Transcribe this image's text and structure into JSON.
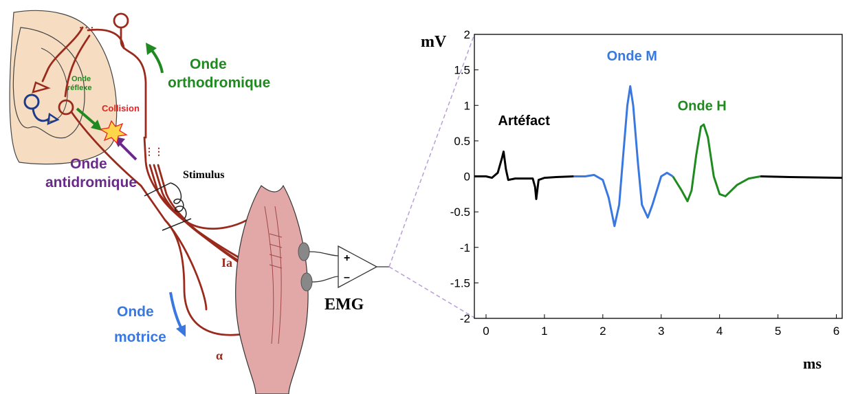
{
  "colors": {
    "nerve": "#9a2a1c",
    "spinal_fill": "#f6dcc0",
    "orthodromic": "#1f8a1f",
    "antidromic": "#6a2a8a",
    "motor": "#3a78e0",
    "collision": "#e8201e",
    "muscle": "#e2a7a7",
    "black": "#000000"
  },
  "diagram": {
    "labels": {
      "onde_reflexe_1": "Onde",
      "onde_reflexe_2": "réflexe",
      "collision": "Collision",
      "ortho_1": "Onde",
      "ortho_2": "orthodromique",
      "anti_1": "Onde",
      "anti_2": "antidromique",
      "stimulus": "Stimulus",
      "ia": "Ia",
      "motrice_1": "Onde",
      "motrice_2": "motrice",
      "alpha": "α",
      "emg": "EMG",
      "plus": "+",
      "minus": "–"
    }
  },
  "chart_data": {
    "type": "line",
    "ylabel": "mV",
    "xlabel": "ms",
    "xlim": [
      -0.2,
      6.1
    ],
    "ylim": [
      -2,
      2
    ],
    "xticks": [
      0,
      1,
      2,
      3,
      4,
      5,
      6
    ],
    "yticks": [
      2,
      1.5,
      1,
      0.5,
      0,
      -0.5,
      -1,
      -1.5,
      -2
    ],
    "grid": false,
    "series": [
      {
        "name": "Artéfact",
        "color": "#000000",
        "points": [
          [
            -0.2,
            0.0
          ],
          [
            0.0,
            0.0
          ],
          [
            0.1,
            -0.02
          ],
          [
            0.2,
            0.05
          ],
          [
            0.27,
            0.25
          ],
          [
            0.3,
            0.35
          ],
          [
            0.34,
            0.1
          ],
          [
            0.38,
            -0.05
          ],
          [
            0.5,
            -0.03
          ],
          [
            0.7,
            -0.03
          ],
          [
            0.8,
            -0.03
          ],
          [
            0.84,
            -0.15
          ],
          [
            0.86,
            -0.32
          ],
          [
            0.9,
            -0.05
          ],
          [
            1.0,
            -0.02
          ],
          [
            1.2,
            -0.01
          ],
          [
            1.5,
            0.0
          ]
        ]
      },
      {
        "name": "Onde M",
        "color": "#3a78e0",
        "points": [
          [
            1.5,
            0.0
          ],
          [
            1.7,
            0.0
          ],
          [
            1.85,
            0.02
          ],
          [
            2.0,
            -0.05
          ],
          [
            2.1,
            -0.3
          ],
          [
            2.2,
            -0.7
          ],
          [
            2.28,
            -0.4
          ],
          [
            2.35,
            0.3
          ],
          [
            2.42,
            1.0
          ],
          [
            2.47,
            1.27
          ],
          [
            2.52,
            1.0
          ],
          [
            2.6,
            0.2
          ],
          [
            2.67,
            -0.4
          ],
          [
            2.77,
            -0.58
          ],
          [
            2.85,
            -0.4
          ],
          [
            3.0,
            0.0
          ],
          [
            3.1,
            0.05
          ],
          [
            3.2,
            0.0
          ]
        ]
      },
      {
        "name": "Onde H",
        "color": "#1f8a1f",
        "points": [
          [
            3.2,
            0.0
          ],
          [
            3.35,
            -0.2
          ],
          [
            3.45,
            -0.35
          ],
          [
            3.52,
            -0.2
          ],
          [
            3.6,
            0.3
          ],
          [
            3.68,
            0.7
          ],
          [
            3.73,
            0.73
          ],
          [
            3.8,
            0.55
          ],
          [
            3.9,
            0.0
          ],
          [
            4.0,
            -0.25
          ],
          [
            4.1,
            -0.28
          ],
          [
            4.3,
            -0.12
          ],
          [
            4.5,
            -0.03
          ],
          [
            4.7,
            0.0
          ]
        ]
      },
      {
        "color": "#000000",
        "points": [
          [
            4.7,
            0.0
          ],
          [
            5.2,
            -0.01
          ],
          [
            6.1,
            -0.02
          ]
        ]
      }
    ],
    "annotations": [
      {
        "text": "Artéfact",
        "x": 0.65,
        "y": 0.72,
        "color": "#000000"
      },
      {
        "text": "Onde M",
        "x": 2.5,
        "y": 1.63,
        "color": "#3a78e0"
      },
      {
        "text": "Onde H",
        "x": 3.7,
        "y": 0.93,
        "color": "#1f8a1f"
      }
    ]
  }
}
